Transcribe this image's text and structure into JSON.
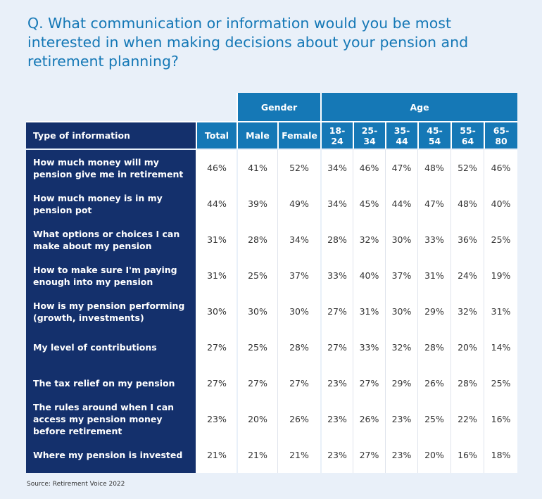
{
  "title": "Q. What communication or information would you be most interested in when making decisions about your pension and retirement planning?",
  "source": "Source: Retirement Voice 2022",
  "chart_data": {
    "type": "table",
    "group_headers": {
      "gender": "Gender",
      "age": "Age"
    },
    "columns": [
      "Type of information",
      "Total",
      "Male",
      "Female",
      "18-24",
      "25-34",
      "35-44",
      "45-54",
      "55-64",
      "65-80"
    ],
    "age_columns": [
      {
        "top": "18-",
        "bottom": "24"
      },
      {
        "top": "25-",
        "bottom": "34"
      },
      {
        "top": "35-",
        "bottom": "44"
      },
      {
        "top": "45-",
        "bottom": "54"
      },
      {
        "top": "55-",
        "bottom": "64"
      },
      {
        "top": "65-",
        "bottom": "80"
      }
    ],
    "rows": [
      {
        "label": "How much money will my pension give me in retirement",
        "values": [
          "46%",
          "41%",
          "52%",
          "34%",
          "46%",
          "47%",
          "48%",
          "52%",
          "46%"
        ]
      },
      {
        "label": "How much money is in my pension pot",
        "values": [
          "44%",
          "39%",
          "49%",
          "34%",
          "45%",
          "44%",
          "47%",
          "48%",
          "40%"
        ]
      },
      {
        "label": "What options or choices I can make about my pension",
        "values": [
          "31%",
          "28%",
          "34%",
          "28%",
          "32%",
          "30%",
          "33%",
          "36%",
          "25%"
        ]
      },
      {
        "label": "How to make sure I'm paying enough into my pension",
        "values": [
          "31%",
          "25%",
          "37%",
          "33%",
          "40%",
          "37%",
          "31%",
          "24%",
          "19%"
        ]
      },
      {
        "label": "How is my pension performing (growth, investments)",
        "values": [
          "30%",
          "30%",
          "30%",
          "27%",
          "31%",
          "30%",
          "29%",
          "32%",
          "31%"
        ]
      },
      {
        "label": "My level of contributions",
        "values": [
          "27%",
          "25%",
          "28%",
          "27%",
          "33%",
          "32%",
          "28%",
          "20%",
          "14%"
        ]
      },
      {
        "label": "The tax relief on my pension",
        "values": [
          "27%",
          "27%",
          "27%",
          "23%",
          "27%",
          "29%",
          "26%",
          "28%",
          "25%"
        ]
      },
      {
        "label": "The rules around when I can access my pension money before retirement",
        "values": [
          "23%",
          "20%",
          "26%",
          "23%",
          "26%",
          "23%",
          "25%",
          "22%",
          "16%"
        ]
      },
      {
        "label": "Where my pension is invested",
        "values": [
          "21%",
          "21%",
          "21%",
          "23%",
          "27%",
          "23%",
          "20%",
          "16%",
          "18%"
        ]
      }
    ]
  },
  "colors": {
    "header_blue": "#1578b6",
    "row_label_navy": "#14306c",
    "title_blue": "#1578b6",
    "background": "#e9f0f9"
  }
}
